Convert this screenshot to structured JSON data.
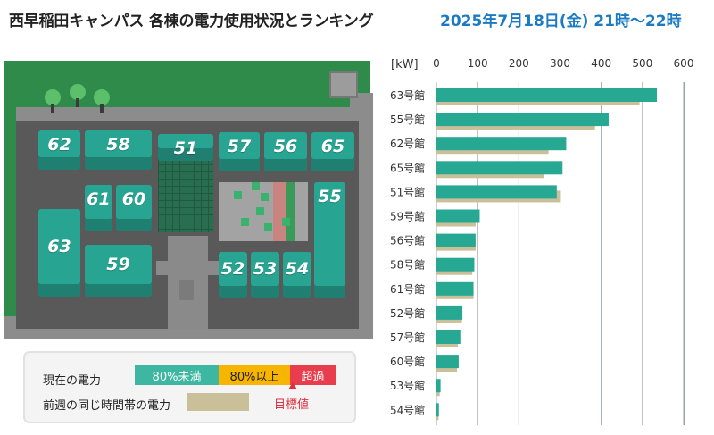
{
  "header": {
    "title": "西早稲田キャンパス 各棟の電力使用状況とランキング",
    "date": "2025年7月18日(金) 21時〜22時"
  },
  "map": {
    "buildings": [
      {
        "id": "62",
        "label": "62"
      },
      {
        "id": "58",
        "label": "58"
      },
      {
        "id": "51",
        "label": "51"
      },
      {
        "id": "57",
        "label": "57"
      },
      {
        "id": "56",
        "label": "56"
      },
      {
        "id": "65",
        "label": "65"
      },
      {
        "id": "61",
        "label": "61"
      },
      {
        "id": "60",
        "label": "60"
      },
      {
        "id": "55",
        "label": "55"
      },
      {
        "id": "63",
        "label": "63"
      },
      {
        "id": "59",
        "label": "59"
      },
      {
        "id": "52",
        "label": "52"
      },
      {
        "id": "53",
        "label": "53"
      },
      {
        "id": "54",
        "label": "54"
      }
    ]
  },
  "legend": {
    "current_label": "現在の電力",
    "under80": "80%未満",
    "over80": "80%以上",
    "exceeded": "超過",
    "previous_label": "前週の同じ時間帯の電力",
    "target_label": "目標値",
    "colors": {
      "under80": "#3db7a2",
      "over80": "#f7b500",
      "exceeded": "#e83d4c",
      "previous": "#c9bf99"
    }
  },
  "chart_data": {
    "type": "bar",
    "orientation": "horizontal",
    "unit_label": "[kW]",
    "xlim": [
      0,
      600
    ],
    "ticks": [
      0,
      100,
      200,
      300,
      400,
      500,
      600
    ],
    "grid": true,
    "categories": [
      "63号館",
      "55号館",
      "62号館",
      "65号館",
      "51号館",
      "59号館",
      "56号館",
      "58号館",
      "61号館",
      "52号館",
      "57号館",
      "60号館",
      "53号館",
      "54号館"
    ],
    "series": [
      {
        "key": "current",
        "color": "#27a893",
        "values": [
          535,
          418,
          315,
          306,
          292,
          105,
          95,
          92,
          90,
          63,
          58,
          54,
          10,
          6
        ]
      },
      {
        "key": "previous",
        "color": "#c9bf99",
        "values": [
          493,
          385,
          272,
          262,
          302,
          95,
          95,
          87,
          90,
          62,
          52,
          50,
          8,
          5
        ]
      }
    ]
  }
}
